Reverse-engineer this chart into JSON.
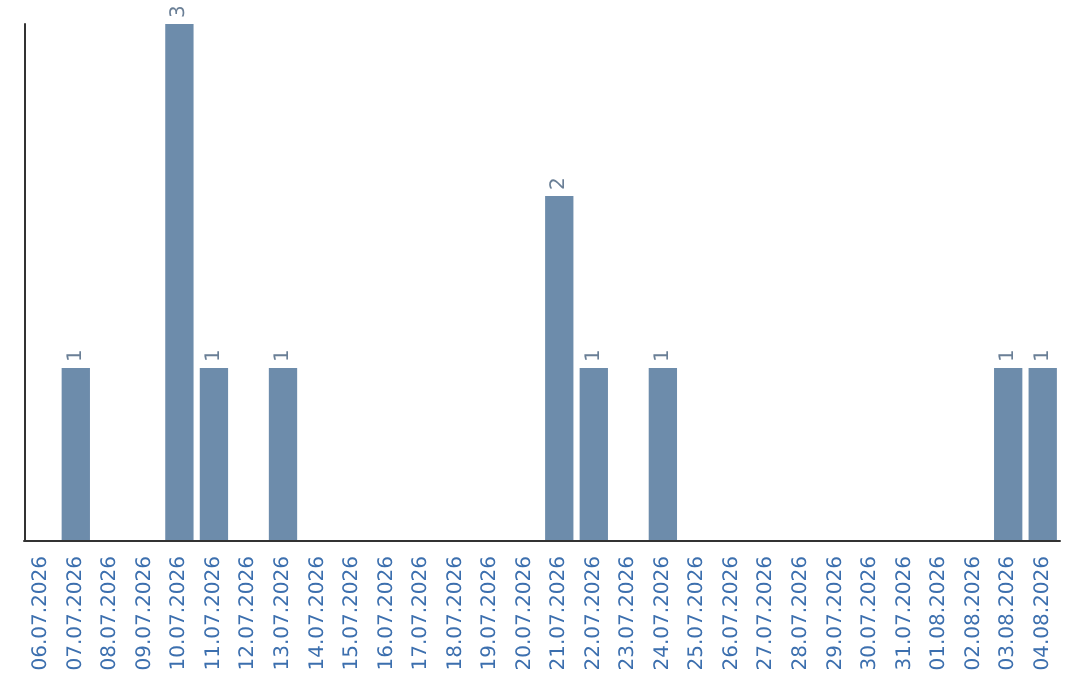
{
  "chart_data": {
    "type": "bar",
    "categories": [
      "06.07.2026",
      "07.07.2026",
      "08.07.2026",
      "09.07.2026",
      "10.07.2026",
      "11.07.2026",
      "12.07.2026",
      "13.07.2026",
      "14.07.2026",
      "15.07.2026",
      "16.07.2026",
      "17.07.2026",
      "18.07.2026",
      "19.07.2026",
      "20.07.2026",
      "21.07.2026",
      "22.07.2026",
      "23.07.2026",
      "24.07.2026",
      "25.07.2026",
      "26.07.2026",
      "27.07.2026",
      "28.07.2026",
      "29.07.2026",
      "30.07.2026",
      "31.07.2026",
      "01.08.2026",
      "02.08.2026",
      "03.08.2026",
      "04.08.2026"
    ],
    "values": [
      0,
      1,
      0,
      0,
      3,
      1,
      0,
      1,
      0,
      0,
      0,
      0,
      0,
      0,
      0,
      2,
      1,
      0,
      1,
      0,
      0,
      0,
      0,
      0,
      0,
      0,
      0,
      0,
      1,
      1
    ],
    "color": "#6d8cab",
    "value_labels": [
      null,
      "1",
      null,
      null,
      "3",
      "1",
      null,
      "1",
      null,
      null,
      null,
      null,
      null,
      null,
      null,
      "2",
      "1",
      null,
      "1",
      null,
      null,
      null,
      null,
      null,
      null,
      null,
      null,
      null,
      "1",
      "1"
    ],
    "grid": false,
    "tick_labels": "x"
  }
}
